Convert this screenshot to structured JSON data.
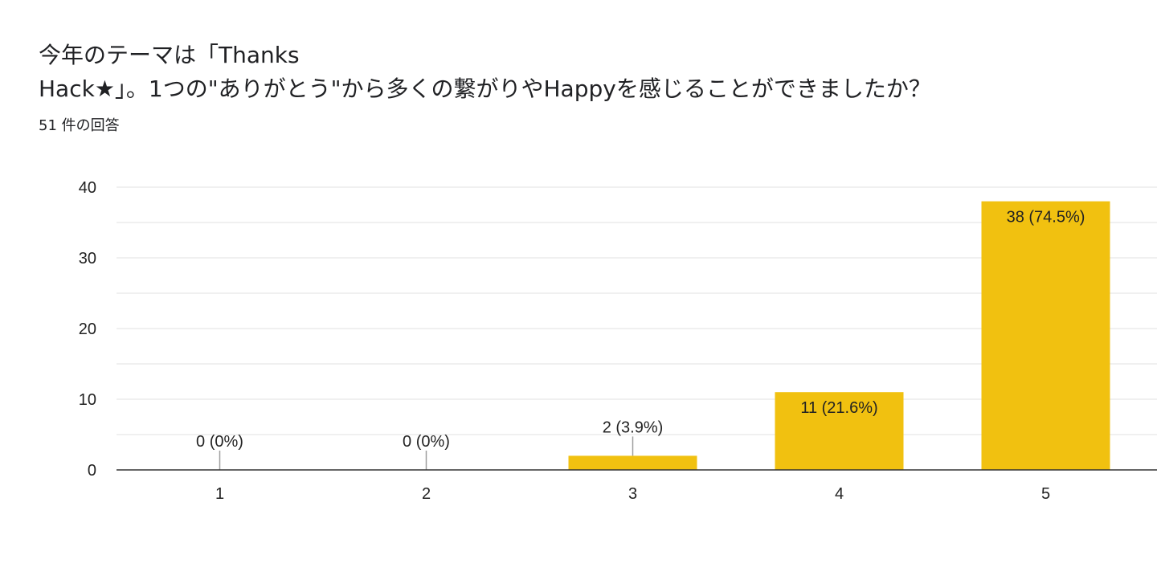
{
  "form": {
    "question_line1": "今年のテーマは「Thanks",
    "question_line2": "Hack★」。1つの\"ありがとう\"から多くの繋がりやHappyを感じることができましたか？",
    "response_count": "51 件の回答"
  },
  "colors": {
    "bar": "#f1c110",
    "grid": "#e8e8e8",
    "baseline": "#333333",
    "leader": "#9e9e9e",
    "text": "#222222"
  },
  "chart_data": {
    "type": "bar",
    "categories": [
      "1",
      "2",
      "3",
      "4",
      "5"
    ],
    "values": [
      0,
      0,
      2,
      11,
      38
    ],
    "data_labels": [
      "0 (0%)",
      "0 (0%)",
      "2 (3.9%)",
      "11 (21.6%)",
      "38 (74.5%)"
    ],
    "ylim": [
      0,
      40
    ],
    "y_ticks": [
      "0",
      "10",
      "20",
      "30",
      "40"
    ],
    "grid": true,
    "legend": "none"
  }
}
